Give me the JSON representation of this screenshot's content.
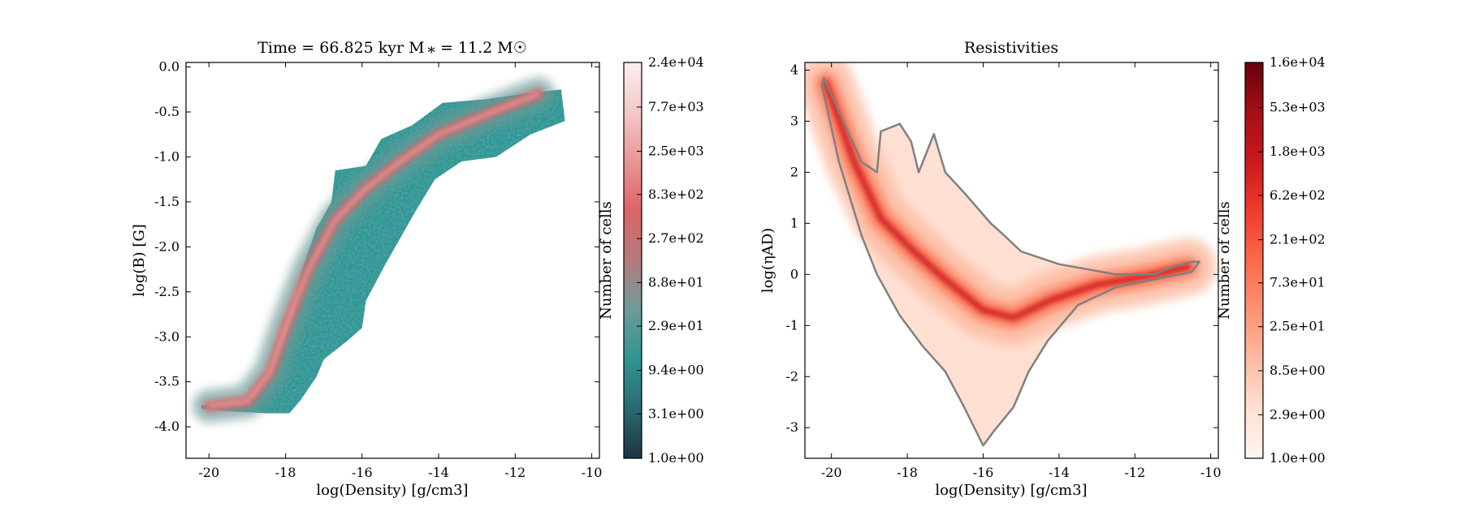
{
  "chart_data": [
    {
      "type": "heatmap",
      "title": "Time = 66.825 kyr    M ⁎ = 11.2 M☉",
      "xlabel": "log(Density) [g/cm3]",
      "ylabel": "log(B) [G]",
      "xlim": [
        -20.6,
        -9.8
      ],
      "ylim": [
        -4.35,
        0.05
      ],
      "x_ticks": [
        -20,
        -18,
        -16,
        -14,
        -12,
        -10
      ],
      "x_tick_labels": [
        "-20",
        "-18",
        "-16",
        "-14",
        "-12",
        "-10"
      ],
      "y_ticks": [
        0.0,
        -0.5,
        -1.0,
        -1.5,
        -2.0,
        -2.5,
        -3.0,
        -3.5,
        -4.0
      ],
      "y_tick_labels": [
        "0.0",
        "-0.5",
        "-1.0",
        "-1.5",
        "-2.0",
        "-2.5",
        "-3.0",
        "-3.5",
        "-4.0"
      ],
      "colorbar": {
        "label": "Number of cells",
        "scale": "log",
        "range": [
          1.0,
          24000
        ],
        "tick_labels": [
          "2.4e+04",
          "7.7e+03",
          "2.5e+03",
          "8.3e+02",
          "2.7e+02",
          "8.8e+01",
          "2.9e+01",
          "9.4e+00",
          "3.1e+00",
          "1.0e+00"
        ],
        "colormap": [
          "#1c3346",
          "#2a6a72",
          "#2f9593",
          "#6d9a98",
          "#b57a7c",
          "#dc6466",
          "#e99596",
          "#f4c9ca",
          "#fbeeee"
        ]
      },
      "distribution": {
        "outline": [
          [
            -20.2,
            -3.76
          ],
          [
            -19.4,
            -3.74
          ],
          [
            -18.8,
            -3.66
          ],
          [
            -18.6,
            -3.5
          ],
          [
            -18.2,
            -3.2
          ],
          [
            -17.8,
            -2.75
          ],
          [
            -17.6,
            -2.3
          ],
          [
            -17.2,
            -1.8
          ],
          [
            -16.8,
            -1.5
          ],
          [
            -16.7,
            -1.15
          ],
          [
            -15.9,
            -1.1
          ],
          [
            -15.5,
            -0.8
          ],
          [
            -14.7,
            -0.65
          ],
          [
            -13.9,
            -0.4
          ],
          [
            -12.8,
            -0.36
          ],
          [
            -11.8,
            -0.3
          ],
          [
            -10.8,
            -0.25
          ],
          [
            -10.7,
            -0.6
          ],
          [
            -11.6,
            -0.75
          ],
          [
            -12.5,
            -1.0
          ],
          [
            -13.4,
            -1.05
          ],
          [
            -14.1,
            -1.25
          ],
          [
            -14.6,
            -1.6
          ],
          [
            -15.4,
            -2.2
          ],
          [
            -15.9,
            -2.6
          ],
          [
            -16.0,
            -2.9
          ],
          [
            -16.4,
            -3.05
          ],
          [
            -17.0,
            -3.25
          ],
          [
            -17.2,
            -3.45
          ],
          [
            -17.6,
            -3.7
          ],
          [
            -17.9,
            -3.85
          ],
          [
            -18.5,
            -3.85
          ],
          [
            -19.4,
            -3.83
          ],
          [
            -20.2,
            -3.8
          ]
        ],
        "ridge": [
          [
            -20.0,
            -3.77
          ],
          [
            -19.0,
            -3.72
          ],
          [
            -18.4,
            -3.4
          ],
          [
            -18.0,
            -2.9
          ],
          [
            -17.4,
            -2.25
          ],
          [
            -16.7,
            -1.7
          ],
          [
            -15.9,
            -1.35
          ],
          [
            -15.0,
            -1.05
          ],
          [
            -14.0,
            -0.75
          ],
          [
            -12.6,
            -0.5
          ],
          [
            -11.4,
            -0.3
          ]
        ]
      }
    },
    {
      "type": "heatmap",
      "title": "Resistivities",
      "xlabel": "log(Density) [g/cm3]",
      "ylabel": "log(ηAD)",
      "xlim": [
        -20.7,
        -9.8
      ],
      "ylim": [
        -3.6,
        4.15
      ],
      "x_ticks": [
        -20,
        -18,
        -16,
        -14,
        -12,
        -10
      ],
      "x_tick_labels": [
        "-20",
        "-18",
        "-16",
        "-14",
        "-12",
        "-10"
      ],
      "y_ticks": [
        4,
        3,
        2,
        1,
        0,
        -1,
        -2,
        -3
      ],
      "y_tick_labels": [
        "4",
        "3",
        "2",
        "1",
        "0",
        "-1",
        "-2",
        "-3"
      ],
      "colorbar": {
        "label": "Number of cells",
        "scale": "log",
        "range": [
          1.0,
          16000
        ],
        "tick_labels": [
          "1.6e+04",
          "5.3e+03",
          "1.8e+03",
          "6.2e+02",
          "2.1e+02",
          "7.3e+01",
          "2.5e+01",
          "8.5e+00",
          "2.9e+00",
          "1.0e+00"
        ],
        "colormap": [
          "#fff5f0",
          "#fee0d2",
          "#fcbba1",
          "#fc9272",
          "#fb6a4a",
          "#ef3b2c",
          "#cb181d",
          "#a50f15",
          "#67000d"
        ]
      },
      "distribution": {
        "outline": [
          [
            -20.2,
            3.85
          ],
          [
            -19.2,
            2.2
          ],
          [
            -18.8,
            2.0
          ],
          [
            -18.7,
            2.8
          ],
          [
            -18.2,
            2.95
          ],
          [
            -17.9,
            2.6
          ],
          [
            -17.7,
            2.0
          ],
          [
            -17.3,
            2.75
          ],
          [
            -17.0,
            2.0
          ],
          [
            -16.5,
            1.6
          ],
          [
            -15.8,
            1.0
          ],
          [
            -15.5,
            0.8
          ],
          [
            -15.0,
            0.45
          ],
          [
            -14.0,
            0.2
          ],
          [
            -12.5,
            0.0
          ],
          [
            -11.5,
            0.0
          ],
          [
            -11.0,
            0.15
          ],
          [
            -10.5,
            0.25
          ],
          [
            -10.3,
            0.25
          ],
          [
            -10.5,
            0.05
          ],
          [
            -11.5,
            -0.1
          ],
          [
            -12.5,
            -0.25
          ],
          [
            -13.5,
            -0.6
          ],
          [
            -14.3,
            -1.3
          ],
          [
            -14.8,
            -1.9
          ],
          [
            -15.2,
            -2.6
          ],
          [
            -15.7,
            -3.05
          ],
          [
            -16.0,
            -3.35
          ],
          [
            -16.5,
            -2.6
          ],
          [
            -17.0,
            -1.9
          ],
          [
            -17.6,
            -1.4
          ],
          [
            -18.2,
            -0.8
          ],
          [
            -18.8,
            0.0
          ],
          [
            -19.2,
            0.75
          ],
          [
            -19.8,
            2.2
          ],
          [
            -20.25,
            3.7
          ]
        ],
        "ridge": [
          [
            -20.15,
            3.75
          ],
          [
            -19.4,
            2.2
          ],
          [
            -18.7,
            1.1
          ],
          [
            -17.9,
            0.5
          ],
          [
            -17.0,
            -0.1
          ],
          [
            -16.0,
            -0.7
          ],
          [
            -15.2,
            -0.85
          ],
          [
            -14.2,
            -0.5
          ],
          [
            -13.0,
            -0.2
          ],
          [
            -11.8,
            -0.05
          ],
          [
            -10.6,
            0.15
          ]
        ]
      }
    }
  ]
}
